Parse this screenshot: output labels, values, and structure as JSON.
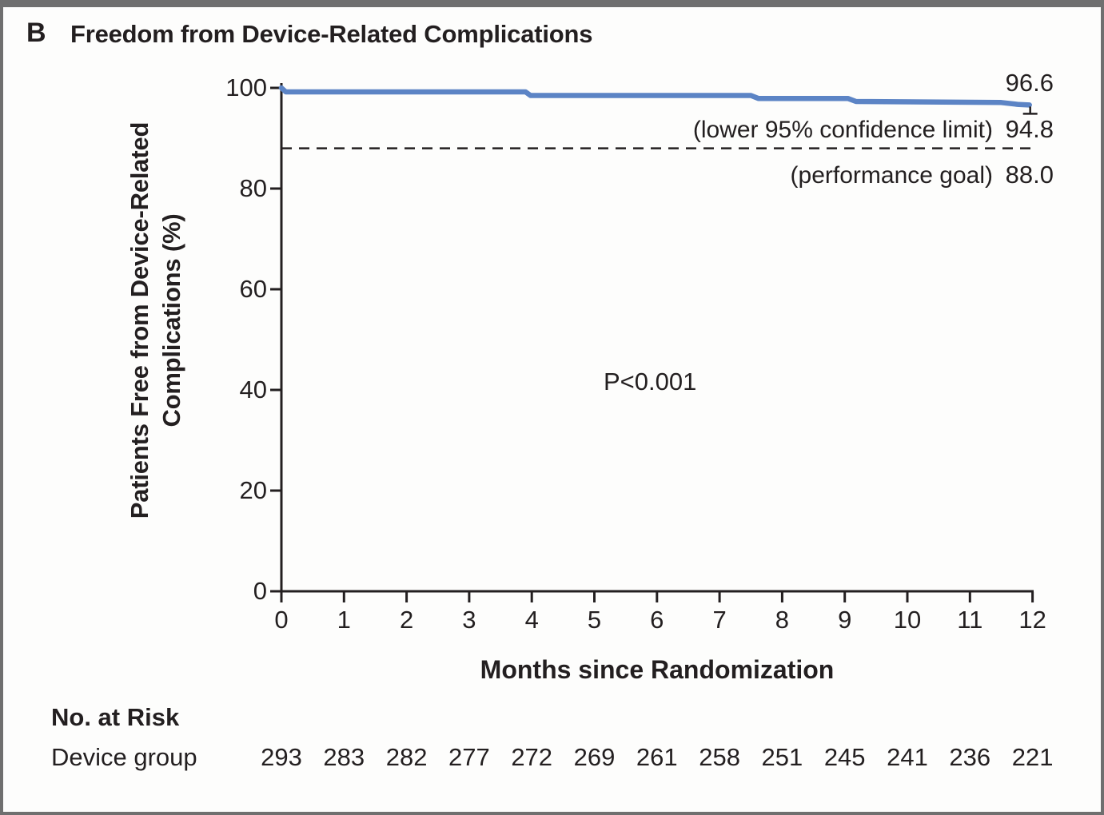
{
  "panel": {
    "label": "B",
    "title": "Freedom from Device-Related Complications"
  },
  "chart_data": {
    "type": "line",
    "title": "Freedom from Device-Related Complications",
    "xlabel": "Months since Randomization",
    "ylabel_lines": [
      "Patients Free from Device-Related",
      "Complications (%)"
    ],
    "xlim": [
      0,
      12
    ],
    "ylim": [
      0,
      100
    ],
    "x_ticks": [
      "0",
      "1",
      "2",
      "3",
      "4",
      "5",
      "6",
      "7",
      "8",
      "9",
      "10",
      "11",
      "12"
    ],
    "y_ticks": [
      "0",
      "20",
      "40",
      "60",
      "80",
      "100"
    ],
    "grid": false,
    "legend_position": "none",
    "series": [
      {
        "name": "Device group",
        "color": "#5c84c5",
        "final_estimate": 96.6,
        "points": [
          [
            0,
            100
          ],
          [
            0.07,
            99.2
          ],
          [
            3.9,
            99.2
          ],
          [
            3.98,
            98.5
          ],
          [
            7.5,
            98.5
          ],
          [
            7.62,
            97.9
          ],
          [
            9.05,
            97.9
          ],
          [
            9.18,
            97.3
          ],
          [
            11.5,
            97.1
          ],
          [
            11.78,
            96.7
          ],
          [
            11.95,
            96.6
          ]
        ]
      }
    ],
    "reference_line": {
      "value": 88.0,
      "style": "dashed",
      "meaning": "performance goal"
    },
    "annotations": {
      "final_estimate_value": "96.6",
      "ci_label": "(lower 95% confidence limit)",
      "ci_value": "94.8",
      "goal_label": "(performance goal)",
      "goal_value": "88.0",
      "p_value": "P<0.001"
    }
  },
  "risk_table": {
    "header": "No. at Risk",
    "rows": [
      {
        "label": "Device group",
        "values": [
          "293",
          "283",
          "282",
          "277",
          "272",
          "269",
          "261",
          "258",
          "251",
          "245",
          "241",
          "236",
          "221"
        ]
      }
    ]
  },
  "colors": {
    "curve": "#5c84c5",
    "ink": "#231f20",
    "frame": "#6f6f6f",
    "background": "#fdfdfc"
  }
}
